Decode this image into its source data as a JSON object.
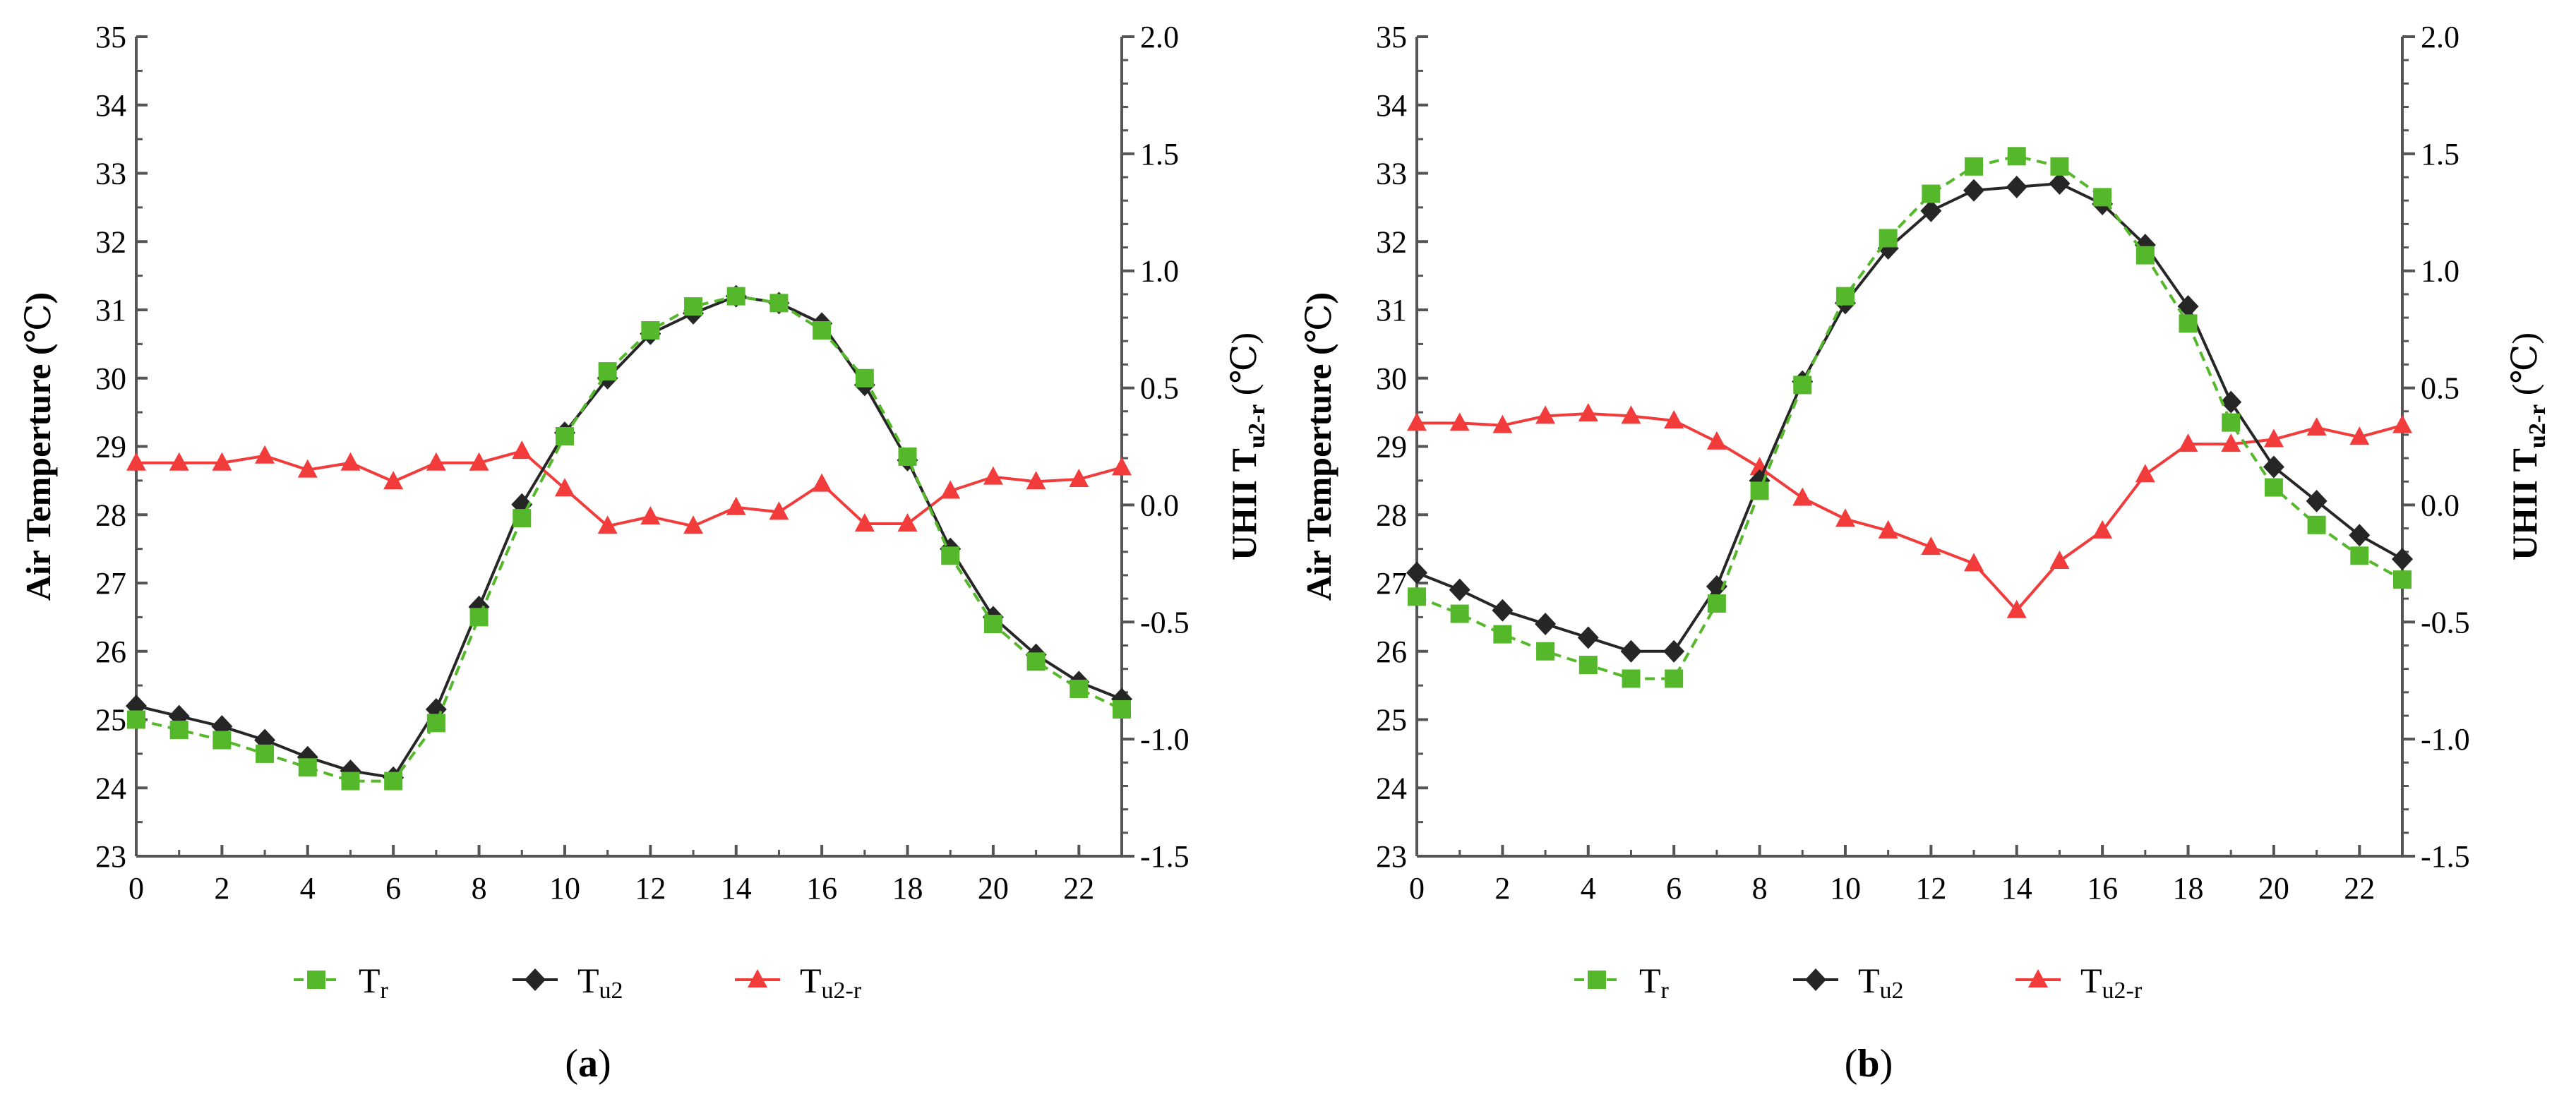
{
  "chart_data": [
    {
      "type": "line",
      "panel_label": "a",
      "x": [
        0,
        1,
        2,
        3,
        4,
        5,
        6,
        7,
        8,
        9,
        10,
        11,
        12,
        13,
        14,
        15,
        16,
        17,
        18,
        19,
        20,
        21,
        22,
        23
      ],
      "xticks": [
        0,
        2,
        4,
        6,
        8,
        10,
        12,
        14,
        16,
        18,
        20,
        22
      ],
      "xlim": [
        0,
        23
      ],
      "ylim": [
        23,
        35
      ],
      "yticks": [
        23,
        24,
        25,
        26,
        27,
        28,
        29,
        30,
        31,
        32,
        33,
        34,
        35
      ],
      "y2lim": [
        -1.5,
        2.0
      ],
      "y2ticks": [
        "-1.5",
        "-1.0",
        "-0.5",
        "0.0",
        "0.5",
        "1.0",
        "1.5",
        "2.0"
      ],
      "ylabel": {
        "main": "Air Temperture (",
        "unit": "℃",
        "tail": ")"
      },
      "y2label": {
        "main": "UHII T",
        "sub": "u2-r",
        "unit": " (℃)"
      },
      "grid": false,
      "legend_position": "bottom",
      "series": [
        {
          "name": "T",
          "sub": "r",
          "axis": "left",
          "color": "#55b82a",
          "marker": "square",
          "dash": true,
          "values": [
            25.0,
            24.85,
            24.7,
            24.5,
            24.3,
            24.1,
            24.1,
            24.95,
            26.5,
            27.95,
            29.15,
            30.1,
            30.7,
            31.05,
            31.2,
            31.1,
            30.7,
            30.0,
            28.85,
            27.4,
            26.4,
            25.85,
            25.45,
            25.15
          ]
        },
        {
          "name": "T",
          "sub": "u2",
          "axis": "left",
          "color": "#262626",
          "marker": "diamond",
          "dash": false,
          "values": [
            25.2,
            25.05,
            24.9,
            24.7,
            24.45,
            24.25,
            24.15,
            25.15,
            26.65,
            28.15,
            29.2,
            30.0,
            30.65,
            30.95,
            31.2,
            31.1,
            30.8,
            29.9,
            28.8,
            27.5,
            26.5,
            25.95,
            25.55,
            25.3
          ]
        },
        {
          "name": "T",
          "sub": "u2-r",
          "axis": "right",
          "color": "#f23b3b",
          "marker": "triangle",
          "dash": false,
          "values": [
            0.18,
            0.18,
            0.18,
            0.21,
            0.15,
            0.18,
            0.1,
            0.18,
            0.18,
            0.23,
            0.07,
            -0.09,
            -0.05,
            -0.09,
            -0.01,
            -0.03,
            0.09,
            -0.08,
            -0.08,
            0.06,
            0.12,
            0.1,
            0.11,
            0.16
          ]
        }
      ]
    },
    {
      "type": "line",
      "panel_label": "b",
      "x": [
        0,
        1,
        2,
        3,
        4,
        5,
        6,
        7,
        8,
        9,
        10,
        11,
        12,
        13,
        14,
        15,
        16,
        17,
        18,
        19,
        20,
        21,
        22,
        23
      ],
      "xticks": [
        0,
        2,
        4,
        6,
        8,
        10,
        12,
        14,
        16,
        18,
        20,
        22
      ],
      "xlim": [
        0,
        23
      ],
      "ylim": [
        23,
        35
      ],
      "yticks": [
        23,
        24,
        25,
        26,
        27,
        28,
        29,
        30,
        31,
        32,
        33,
        34,
        35
      ],
      "y2lim": [
        -1.5,
        2.0
      ],
      "y2ticks": [
        "-1.5",
        "-1.0",
        "-0.5",
        "0.0",
        "0.5",
        "1.0",
        "1.5",
        "2.0"
      ],
      "ylabel": {
        "main": "Air Temperture (",
        "unit": "℃",
        "tail": ")"
      },
      "y2label": {
        "main": "UHII T",
        "sub": "u2-r",
        "unit": " (℃)"
      },
      "grid": false,
      "legend_position": "bottom",
      "series": [
        {
          "name": "T",
          "sub": "r",
          "axis": "left",
          "color": "#55b82a",
          "marker": "square",
          "dash": true,
          "values": [
            26.8,
            26.55,
            26.25,
            26.0,
            25.8,
            25.6,
            25.6,
            26.7,
            28.35,
            29.9,
            31.2,
            32.05,
            32.7,
            33.1,
            33.25,
            33.1,
            32.65,
            31.8,
            30.8,
            29.35,
            28.4,
            27.85,
            27.4,
            27.05
          ]
        },
        {
          "name": "T",
          "sub": "u2",
          "axis": "right_unused",
          "axis_note": "",
          "color": "#262626",
          "marker": "diamond",
          "dash": false,
          "values": [
            27.15,
            26.9,
            26.6,
            26.4,
            26.2,
            26.0,
            26.0,
            26.95,
            28.5,
            29.95,
            31.1,
            31.9,
            32.45,
            32.75,
            32.8,
            32.85,
            32.55,
            31.95,
            31.05,
            29.65,
            28.7,
            28.2,
            27.7,
            27.35
          ]
        },
        {
          "name": "T",
          "sub": "u2-r",
          "axis": "right",
          "color": "#f23b3b",
          "marker": "triangle",
          "dash": false,
          "values": [
            0.35,
            0.35,
            0.34,
            0.38,
            0.39,
            0.38,
            0.36,
            0.27,
            0.16,
            0.03,
            -0.06,
            -0.11,
            -0.18,
            -0.25,
            -0.45,
            -0.24,
            -0.11,
            0.13,
            0.26,
            0.26,
            0.28,
            0.33,
            0.29,
            0.34
          ]
        }
      ]
    }
  ]
}
